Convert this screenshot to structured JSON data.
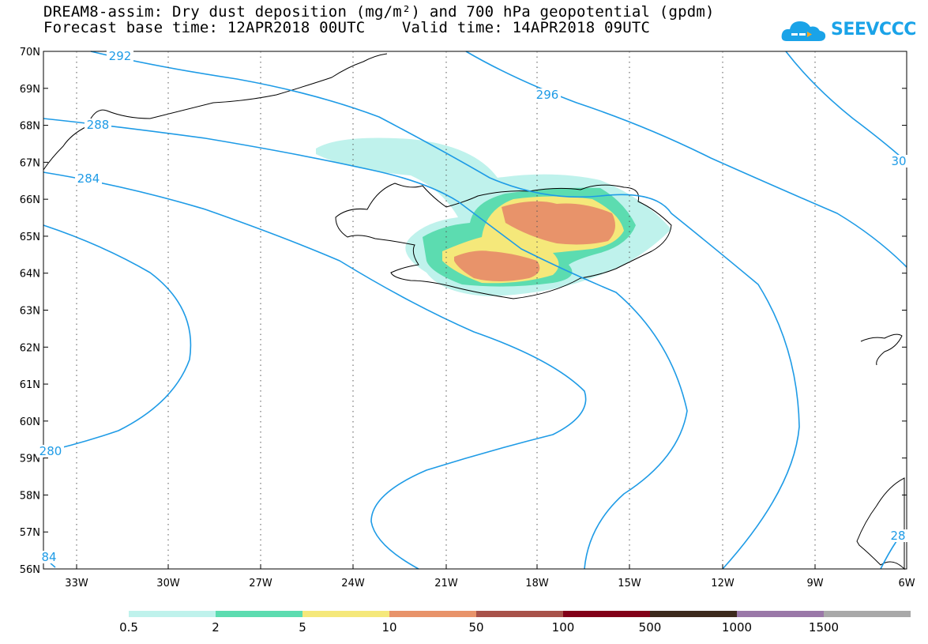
{
  "title": {
    "line1": "DREAM8-assim: Dry dust deposition (mg/m²) and 700 hPa geopotential (gpdm)",
    "line2": "Forecast base time: 12APR2018 00UTC    Valid time: 14APR2018 09UTC"
  },
  "logo": {
    "text": "SEEVCCC",
    "icon": "cloud-logo-icon",
    "color": "#1aa3e8"
  },
  "map": {
    "lat_labels": [
      "70N",
      "69N",
      "68N",
      "67N",
      "66N",
      "65N",
      "64N",
      "63N",
      "62N",
      "61N",
      "60N",
      "59N",
      "58N",
      "57N",
      "56N"
    ],
    "lon_labels": [
      "33W",
      "30W",
      "27W",
      "24W",
      "21W",
      "18W",
      "15W",
      "12W",
      "9W",
      "6W"
    ],
    "contour_color": "#1e9be6",
    "contour_labels": [
      "292",
      "296",
      "288",
      "284",
      "30",
      "280",
      "84",
      "28"
    ]
  },
  "colorbar": {
    "colors": [
      "#bff2ec",
      "#5cdcb0",
      "#f5e87a",
      "#e8936a",
      "#a8524a",
      "#820018",
      "#3d2a1d",
      "#9a78a8",
      "#a9a9a9"
    ],
    "labels": [
      "0.5",
      "2",
      "5",
      "10",
      "50",
      "100",
      "500",
      "1000",
      "1500"
    ]
  }
}
